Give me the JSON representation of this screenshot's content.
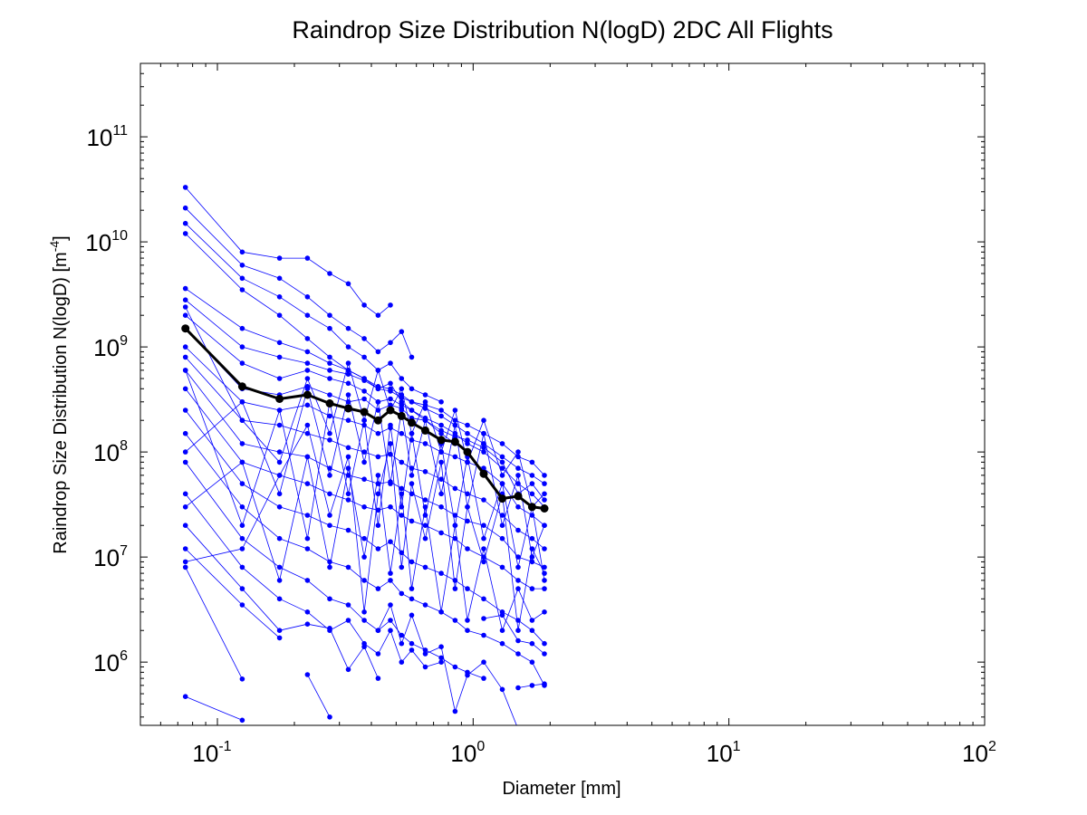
{
  "chart_data": {
    "type": "line",
    "title": "Raindrop Size Distribution N(logD) 2DC All Flights",
    "xlabel": "Diameter [mm]",
    "ylabel": "Raindrop Size Distribution N(logD) [m",
    "ylabel_exp": "-4",
    "ylabel_close": "]",
    "xscale": "log",
    "yscale": "log",
    "xlim": [
      0.05,
      100
    ],
    "ylim": [
      250000,
      500000000000
    ],
    "grid": false,
    "xticks": [
      {
        "value": 0.1,
        "base": "10",
        "exp": "-1"
      },
      {
        "value": 1,
        "base": "10",
        "exp": "0"
      },
      {
        "value": 10,
        "base": "10",
        "exp": "1"
      },
      {
        "value": 100,
        "base": "10",
        "exp": "2"
      }
    ],
    "yticks": [
      {
        "value": 1000000,
        "base": "10",
        "exp": "6"
      },
      {
        "value": 10000000,
        "base": "10",
        "exp": "7"
      },
      {
        "value": 100000000,
        "base": "10",
        "exp": "8"
      },
      {
        "value": 1000000000,
        "base": "10",
        "exp": "9"
      },
      {
        "value": 10000000000,
        "base": "10",
        "exp": "10"
      },
      {
        "value": 100000000000,
        "base": "10",
        "exp": "11"
      }
    ],
    "colors": {
      "flights": "#0000ff",
      "mean": "#000000"
    },
    "x": [
      0.075,
      0.125,
      0.175,
      0.225,
      0.275,
      0.325,
      0.375,
      0.425,
      0.475,
      0.525,
      0.575,
      0.65,
      0.75,
      0.85,
      0.95,
      1.1,
      1.3,
      1.5,
      1.7,
      1.9
    ],
    "series": [
      {
        "values": [
          33000000000,
          8000000000,
          7000000000,
          7000000000,
          5000000000,
          4000000000,
          2500000000,
          2000000000,
          2500000000,
          null,
          null,
          null,
          null,
          null,
          null,
          null,
          null,
          null,
          null,
          null
        ]
      },
      {
        "values": [
          21000000000,
          6000000000,
          4500000000,
          3000000000,
          2000000000,
          1500000000,
          1200000000,
          900000000,
          1100000000,
          1400000000,
          800000000,
          null,
          null,
          null,
          null,
          null,
          null,
          null,
          null,
          null
        ]
      },
      {
        "values": [
          15000000000,
          4500000000,
          3000000000,
          2000000000,
          1500000000,
          1000000000,
          800000000,
          600000000,
          700000000,
          500000000,
          400000000,
          350000000,
          300000000,
          null,
          null,
          null,
          null,
          null,
          null,
          null
        ]
      },
      {
        "values": [
          12000000000,
          3500000000,
          2000000000,
          1200000000,
          800000000,
          600000000,
          500000000,
          400000000,
          450000000,
          300000000,
          250000000,
          200000000,
          150000000,
          120000000,
          100000000,
          null,
          null,
          null,
          null,
          null
        ]
      },
      {
        "values": [
          3600000000,
          1500000000,
          1100000000,
          900000000,
          700000000,
          600000000,
          500000000,
          420000000,
          400000000,
          350000000,
          300000000,
          280000000,
          250000000,
          200000000,
          180000000,
          150000000,
          120000000,
          90000000,
          80000000,
          60000000
        ]
      },
      {
        "values": [
          2800000000,
          1000000000,
          800000000,
          700000000,
          600000000,
          550000000,
          480000000,
          400000000,
          380000000,
          330000000,
          300000000,
          260000000,
          220000000,
          180000000,
          150000000,
          120000000,
          90000000,
          70000000,
          60000000,
          50000000
        ]
      },
      {
        "values": [
          2000000000,
          700000000,
          500000000,
          600000000,
          500000000,
          450000000,
          380000000,
          300000000,
          320000000,
          280000000,
          250000000,
          210000000,
          180000000,
          150000000,
          120000000,
          100000000,
          70000000,
          50000000,
          40000000,
          30000000
        ]
      },
      {
        "values": [
          1500000000,
          400000000,
          350000000,
          420000000,
          350000000,
          300000000,
          320000000,
          250000000,
          280000000,
          260000000,
          210000000,
          200000000,
          160000000,
          140000000,
          130000000,
          110000000,
          80000000,
          40000000,
          50000000,
          35000000
        ]
      },
      {
        "values": [
          1000000000,
          300000000,
          250000000,
          280000000,
          220000000,
          200000000,
          180000000,
          150000000,
          170000000,
          150000000,
          130000000,
          120000000,
          100000000,
          90000000,
          80000000,
          70000000,
          50000000,
          30000000,
          25000000,
          20000000
        ]
      },
      {
        "values": [
          800000000,
          200000000,
          180000000,
          150000000,
          130000000,
          110000000,
          100000000,
          90000000,
          95000000,
          80000000,
          70000000,
          65000000,
          55000000,
          45000000,
          40000000,
          35000000,
          25000000,
          18000000,
          15000000,
          12000000
        ]
      },
      {
        "values": [
          600000000,
          120000000,
          100000000,
          90000000,
          70000000,
          60000000,
          55000000,
          50000000,
          52000000,
          45000000,
          40000000,
          35000000,
          30000000,
          25000000,
          22000000,
          20000000,
          15000000,
          10000000,
          9000000,
          8000000
        ]
      },
      {
        "values": [
          400000000,
          80000000,
          60000000,
          50000000,
          40000000,
          35000000,
          30000000,
          28000000,
          30000000,
          25000000,
          22000000,
          20000000,
          17000000,
          15000000,
          12000000,
          10000000,
          8000000,
          6000000,
          5000000,
          5000000
        ]
      },
      {
        "values": [
          250000000,
          50000000,
          30000000,
          25000000,
          20000000,
          18000000,
          15000000,
          12000000,
          14000000,
          11000000,
          9000000,
          8000000,
          7000000,
          6000000,
          5000000,
          4000000,
          3000000,
          2500000,
          2000000,
          1500000
        ]
      },
      {
        "values": [
          150000000,
          30000000,
          15000000,
          12000000,
          9000000,
          8000000,
          6000000,
          5000000,
          6000000,
          4500000,
          4000000,
          3500000,
          3000000,
          2500000,
          2000000,
          1800000,
          1500000,
          1200000,
          1000000,
          600000
        ]
      },
      {
        "values": [
          80000000,
          15000000,
          8000000,
          6000000,
          4000000,
          3500000,
          2500000,
          2000000,
          2500000,
          1800000,
          1500000,
          1300000,
          1100000,
          900000,
          800000,
          700000,
          null,
          null,
          null,
          null
        ]
      },
      {
        "values": [
          40000000,
          8000000,
          4000000,
          3000000,
          2000000,
          2500000,
          1500000,
          1200000,
          2000000,
          1000000,
          1300000,
          900000,
          1000000,
          null,
          null,
          null,
          null,
          null,
          null,
          null
        ]
      },
      {
        "values": [
          20000000,
          5000000,
          2000000,
          2300000,
          2100000,
          850000,
          1400000,
          700000,
          null,
          null,
          null,
          null,
          null,
          null,
          null,
          null,
          null,
          null,
          null,
          null
        ]
      },
      {
        "values": [
          12000000,
          3500000,
          1700000,
          null,
          null,
          null,
          null,
          null,
          null,
          null,
          null,
          null,
          null,
          null,
          null,
          null,
          null,
          null,
          null,
          null
        ]
      },
      {
        "values": [
          8000000,
          690000,
          null,
          760000,
          300000,
          null,
          null,
          null,
          null,
          null,
          null,
          null,
          null,
          null,
          null,
          null,
          null,
          null,
          null,
          null
        ]
      },
      {
        "values": [
          470000,
          280000,
          null,
          null,
          null,
          null,
          null,
          null,
          null,
          null,
          null,
          null,
          null,
          null,
          null,
          null,
          null,
          null,
          null,
          null
        ]
      },
      {
        "values": [
          9000000,
          12000000,
          60000000,
          180000000,
          25000000,
          90000000,
          3000000,
          40000000,
          120000000,
          8000000,
          50000000,
          15000000,
          80000000,
          5000000,
          30000000,
          9000000,
          40000000,
          2000000,
          12000000,
          7000000
        ]
      },
      {
        "values": [
          600000000,
          20000000,
          250000000,
          15000000,
          300000000,
          40000000,
          200000000,
          20000000,
          180000000,
          30000000,
          150000000,
          25000000,
          120000000,
          20000000,
          90000000,
          15000000,
          50000000,
          8000000,
          30000000,
          6000000
        ]
      },
      {
        "values": [
          100000000,
          300000000,
          40000000,
          400000000,
          60000000,
          350000000,
          80000000,
          300000000,
          50000000,
          250000000,
          60000000,
          200000000,
          40000000,
          180000000,
          30000000,
          150000000,
          20000000,
          60000000,
          10000000,
          20000000
        ]
      },
      {
        "values": [
          30000000,
          80000000,
          6000000,
          90000000,
          8000000,
          70000000,
          10000000,
          60000000,
          7000000,
          40000000,
          5000000,
          30000000,
          3000000,
          20000000,
          2500000,
          12000000,
          2000000,
          5000000,
          2500000,
          3000000
        ]
      },
      {
        "values": [
          null,
          null,
          null,
          null,
          null,
          null,
          null,
          2000000,
          3500000,
          1500000,
          2800000,
          1200000,
          1400000,
          340000,
          750000,
          1000000,
          550000,
          230000,
          null,
          null
        ]
      },
      {
        "values": [
          null,
          null,
          null,
          null,
          null,
          null,
          null,
          null,
          null,
          null,
          null,
          null,
          null,
          null,
          null,
          null,
          null,
          570000,
          600000,
          620000
        ]
      },
      {
        "values": [
          null,
          null,
          null,
          null,
          null,
          null,
          null,
          null,
          null,
          null,
          null,
          null,
          null,
          null,
          null,
          2600000,
          2800000,
          1600000,
          1500000,
          1200000
        ]
      },
      {
        "values": [
          2400000000,
          200000000,
          80000000,
          500000000,
          150000000,
          700000000,
          200000000,
          600000000,
          250000000,
          400000000,
          150000000,
          300000000,
          100000000,
          250000000,
          80000000,
          200000000,
          60000000,
          100000000,
          30000000,
          40000000
        ]
      }
    ],
    "mean": {
      "values": [
        1500000000,
        420000000,
        320000000,
        350000000,
        290000000,
        260000000,
        240000000,
        200000000,
        250000000,
        220000000,
        190000000,
        160000000,
        130000000,
        125000000,
        100000000,
        62000000,
        36000000,
        38000000,
        30000000,
        29000000
      ]
    }
  }
}
